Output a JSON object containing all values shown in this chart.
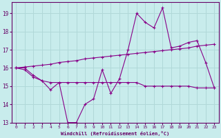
{
  "xlabel": "Windchill (Refroidissement éolien,°C)",
  "background_color": "#c8ecec",
  "grid_color": "#b0d8d8",
  "line_color": "#880088",
  "x_values": [
    0,
    1,
    2,
    3,
    4,
    5,
    6,
    7,
    8,
    9,
    10,
    11,
    12,
    13,
    14,
    15,
    16,
    17,
    18,
    19,
    20,
    21,
    22,
    23
  ],
  "series1": [
    16.0,
    15.9,
    15.5,
    15.3,
    14.8,
    15.2,
    13.0,
    13.0,
    14.0,
    14.3,
    15.9,
    14.6,
    15.4,
    17.0,
    19.0,
    18.5,
    18.2,
    19.3,
    17.1,
    17.2,
    17.4,
    17.5,
    16.3,
    14.9
  ],
  "series2": [
    16.0,
    16.0,
    15.6,
    15.3,
    15.2,
    15.2,
    15.2,
    15.2,
    15.2,
    15.2,
    15.2,
    15.2,
    15.2,
    15.2,
    15.2,
    15.0,
    15.0,
    15.0,
    15.0,
    15.0,
    15.0,
    14.9,
    14.9,
    14.9
  ],
  "series3": [
    16.0,
    16.05,
    16.1,
    16.15,
    16.2,
    16.3,
    16.35,
    16.4,
    16.5,
    16.55,
    16.6,
    16.65,
    16.7,
    16.75,
    16.8,
    16.85,
    16.9,
    16.95,
    17.0,
    17.05,
    17.1,
    17.2,
    17.25,
    17.3
  ],
  "ylim": [
    13,
    19.6
  ],
  "xlim": [
    -0.5,
    23.5
  ],
  "yticks": [
    13,
    14,
    15,
    16,
    17,
    18,
    19
  ],
  "xticks": [
    0,
    1,
    2,
    3,
    4,
    5,
    6,
    7,
    8,
    9,
    10,
    11,
    12,
    13,
    14,
    15,
    16,
    17,
    18,
    19,
    20,
    21,
    22,
    23
  ]
}
